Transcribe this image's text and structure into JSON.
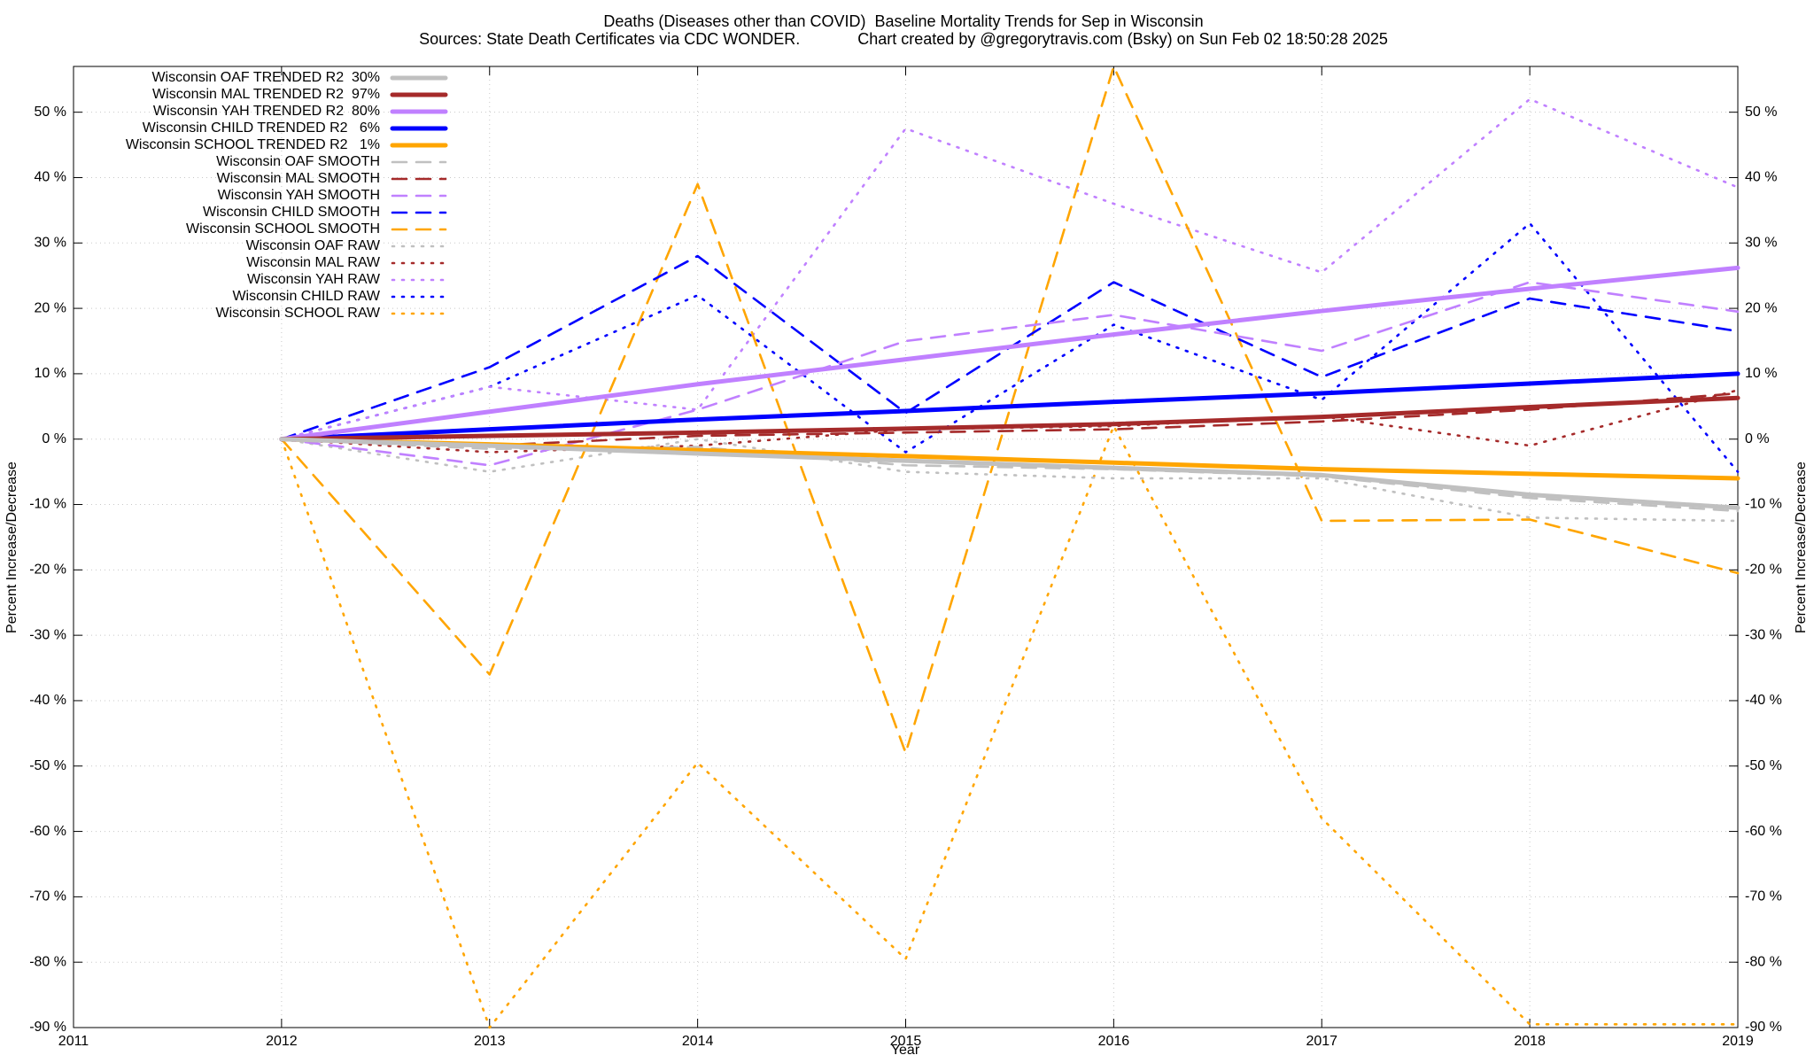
{
  "chart_data": {
    "type": "line",
    "title": "Deaths (Diseases other than COVID)  Baseline Mortality Trends for Sep in Wisconsin",
    "subtitle": "Sources: State Death Certificates via CDC WONDER.             Chart created by @gregorytravis.com (Bsky) on Sun Feb 02 18:50:28 2025",
    "x_label": "Year",
    "y_label": "Percent Increase/Decrease",
    "x": [
      2012,
      2013,
      2014,
      2015,
      2016,
      2017,
      2018,
      2019
    ],
    "xlim": [
      2011,
      2019
    ],
    "xticks": [
      2011,
      2012,
      2013,
      2014,
      2015,
      2016,
      2017,
      2018,
      2019
    ],
    "ylim": [
      -90,
      57
    ],
    "yticks": [
      {
        "value": -90,
        "label": "-90 %"
      },
      {
        "value": -80,
        "label": "-80 %"
      },
      {
        "value": -70,
        "label": "-70 %"
      },
      {
        "value": -60,
        "label": "-60 %"
      },
      {
        "value": -50,
        "label": "-50 %"
      },
      {
        "value": -40,
        "label": "-40 %"
      },
      {
        "value": -30,
        "label": "-30 %"
      },
      {
        "value": -20,
        "label": "-20 %"
      },
      {
        "value": -10,
        "label": "-10 %"
      },
      {
        "value": 0,
        "label": "0 %"
      },
      {
        "value": 10,
        "label": "10 %"
      },
      {
        "value": 20,
        "label": "20 %"
      },
      {
        "value": 30,
        "label": "30 %"
      },
      {
        "value": 40,
        "label": "40 %"
      },
      {
        "value": 50,
        "label": "50 %"
      }
    ],
    "grid": true,
    "legend": "top-left",
    "series": [
      {
        "name": "Wisconsin OAF TRENDED R2  30%",
        "color": "#c0c0c0",
        "style": "solid",
        "values": [
          0,
          -1,
          -2.2,
          -3.3,
          -4.4,
          -5.5,
          -8.5,
          -10.5
        ]
      },
      {
        "name": "Wisconsin MAL TRENDED R2  97%",
        "color": "#a52a2a",
        "style": "solid",
        "values": [
          0,
          0.5,
          1,
          1.6,
          2.3,
          3.4,
          4.9,
          6.3
        ]
      },
      {
        "name": "Wisconsin YAH TRENDED R2  80%",
        "color": "#c080ff",
        "style": "solid",
        "values": [
          0,
          4.2,
          8.4,
          12.2,
          16,
          19.6,
          23,
          26.2
        ]
      },
      {
        "name": "Wisconsin CHILD TRENDED R2   6%",
        "color": "#0000ff",
        "style": "solid",
        "values": [
          0,
          1.5,
          3,
          4.3,
          5.7,
          7,
          8.5,
          10
        ]
      },
      {
        "name": "Wisconsin SCHOOL TRENDED R2   1%",
        "color": "#ffa500",
        "style": "solid",
        "values": [
          0,
          -0.8,
          -1.7,
          -2.6,
          -3.6,
          -4.6,
          -5.3,
          -6
        ]
      },
      {
        "name": "Wisconsin OAF SMOOTH",
        "color": "#c0c0c0",
        "style": "dashed",
        "values": [
          0,
          -1.5,
          -1.2,
          -4,
          -4.6,
          -5.7,
          -9,
          -11
        ]
      },
      {
        "name": "Wisconsin MAL SMOOTH",
        "color": "#a52a2a",
        "style": "dashed",
        "values": [
          0,
          -1,
          0.5,
          1,
          1.5,
          2.7,
          4.5,
          7
        ]
      },
      {
        "name": "Wisconsin YAH SMOOTH",
        "color": "#c080ff",
        "style": "dashed",
        "values": [
          0,
          -4,
          4.5,
          15,
          19,
          13.5,
          24,
          19.5
        ]
      },
      {
        "name": "Wisconsin CHILD SMOOTH",
        "color": "#0000ff",
        "style": "dashed",
        "values": [
          0,
          11,
          28,
          4,
          24,
          9.5,
          21.5,
          16.5
        ]
      },
      {
        "name": "Wisconsin SCHOOL SMOOTH",
        "color": "#ffa500",
        "style": "dashed",
        "values": [
          0,
          -36,
          39,
          -48,
          57,
          -12.5,
          -12.3,
          -20.5
        ]
      },
      {
        "name": "Wisconsin OAF RAW",
        "color": "#c0c0c0",
        "style": "dotted",
        "values": [
          0,
          -5,
          0,
          -5,
          -6,
          -6,
          -12,
          -12.5
        ]
      },
      {
        "name": "Wisconsin MAL RAW",
        "color": "#a52a2a",
        "style": "dotted",
        "values": [
          0,
          -2,
          -1,
          1.5,
          2,
          3.5,
          -1,
          7.5
        ]
      },
      {
        "name": "Wisconsin YAH RAW",
        "color": "#c080ff",
        "style": "dotted",
        "values": [
          0,
          8,
          4.5,
          47.5,
          36,
          25.5,
          52,
          38.5
        ]
      },
      {
        "name": "Wisconsin CHILD RAW",
        "color": "#0000ff",
        "style": "dotted",
        "values": [
          0,
          8,
          22,
          -2,
          17.5,
          6,
          33,
          -5
        ]
      },
      {
        "name": "Wisconsin SCHOOL RAW",
        "color": "#ffa500",
        "style": "dotted",
        "values": [
          0,
          -90,
          -49.5,
          -79.5,
          2,
          -58,
          -89.5,
          -89.5
        ]
      }
    ]
  }
}
